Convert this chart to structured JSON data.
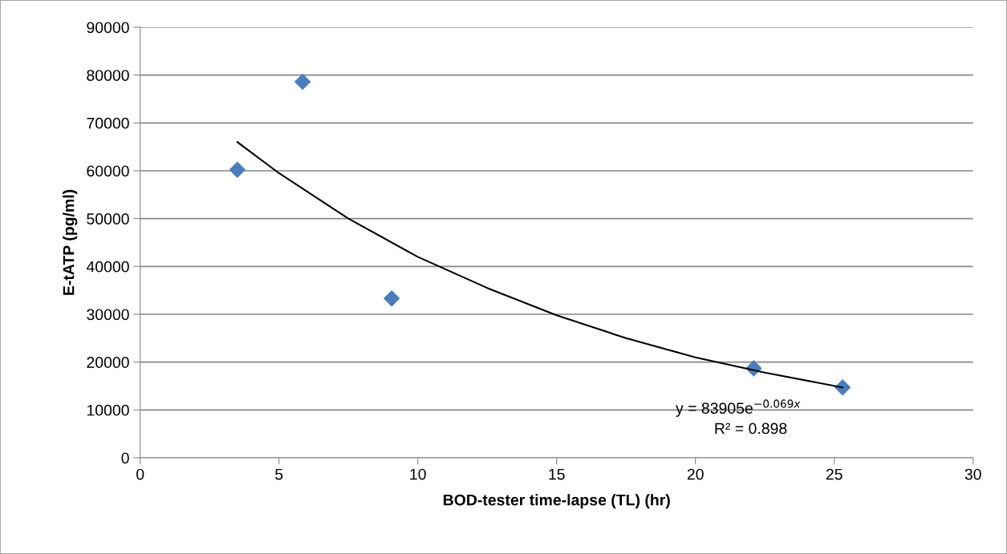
{
  "chart_data": {
    "type": "scatter",
    "xlabel": "BOD-tester time-lapse (TL) (hr)",
    "ylabel": "E-tATP (pg/ml)",
    "series": [
      {
        "color": "#4a7ebb",
        "marker": "diamond",
        "x": [
          3.5,
          5.85,
          9.06,
          22.1,
          25.3
        ],
        "values": [
          60200,
          78600,
          33300,
          18700,
          14700
        ]
      },
      {
        "type": "line",
        "color": "#000000",
        "marker": "none",
        "line_style": "solid",
        "x": [
          3.5,
          5,
          7.5,
          10,
          12.5,
          15,
          17.5,
          20,
          22.5,
          25.3
        ],
        "values": [
          66000,
          59500,
          50000,
          42000,
          35500,
          29800,
          25000,
          21000,
          17800,
          14700
        ]
      }
    ],
    "annotations": [
      "y = 83905e$^{−0.069x}$",
      "R² = 0.898"
    ],
    "xlim": [
      0,
      30
    ],
    "xticks": [
      0,
      5,
      10,
      15,
      20,
      25,
      30
    ],
    "ylim": [
      0,
      90000
    ],
    "yticks": [
      0,
      10000,
      20000,
      30000,
      40000,
      50000,
      60000,
      70000,
      80000,
      90000
    ],
    "grid": "y",
    "legend": false
  }
}
